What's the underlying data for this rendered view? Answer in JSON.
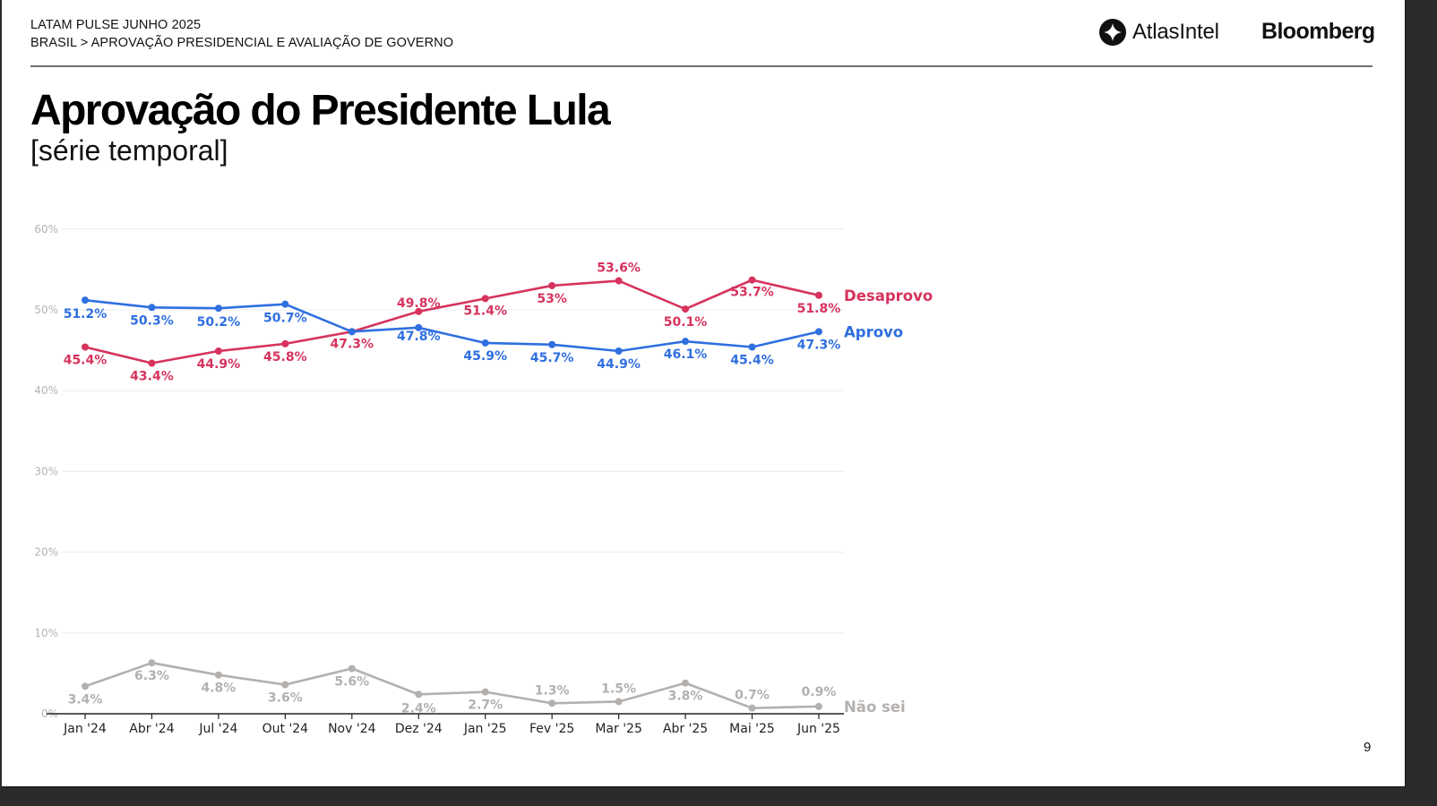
{
  "header": {
    "report": "LATAM PULSE JUNHO 2025",
    "breadcrumb": "BRASIL > APROVAÇÃO PRESIDENCIAL E AVALIAÇÃO DE GOVERNO"
  },
  "logos": {
    "atlas": "AtlasIntel",
    "bloomberg": "Bloomberg"
  },
  "title": "Aprovação do Presidente Lula",
  "subtitle": "[série temporal]",
  "page_number": "9",
  "colors": {
    "desaprovo": "#d6335d",
    "aprovo": "#2f6fe0",
    "nao_sei": "#b3b0ae",
    "grid": "#ececec",
    "axis": "#222222"
  },
  "chart_data": {
    "type": "line",
    "title": "Aprovação do Presidente Lula",
    "subtitle": "[série temporal]",
    "xlabel": "",
    "ylabel": "",
    "ylim": [
      0,
      60
    ],
    "yticks": [
      0,
      10,
      20,
      30,
      40,
      50,
      60
    ],
    "ytick_labels": [
      "0%",
      "10%",
      "20%",
      "30%",
      "40%",
      "50%",
      "60%"
    ],
    "grid": true,
    "legend": "inline-right",
    "categories": [
      "Jan '24",
      "Abr '24",
      "Jul '24",
      "Out '24",
      "Nov '24",
      "Dez '24",
      "Jan '25",
      "Fev '25",
      "Mar '25",
      "Abr '25",
      "Mai '25",
      "Jun '25"
    ],
    "series": [
      {
        "key": "desaprovo",
        "name": "Desaprovo",
        "values": [
          45.4,
          43.4,
          44.9,
          45.8,
          47.3,
          49.8,
          51.4,
          53.0,
          53.6,
          50.1,
          53.7,
          51.8
        ],
        "labels": [
          "45.4%",
          "43.4%",
          "44.9%",
          "45.8%",
          "47.3%",
          "49.8%",
          "51.4%",
          "53%",
          "53.6%",
          "50.1%",
          "53.7%",
          "51.8%"
        ]
      },
      {
        "key": "aprovo",
        "name": "Aprovo",
        "values": [
          51.2,
          50.3,
          50.2,
          50.7,
          47.3,
          47.8,
          45.9,
          45.7,
          44.9,
          46.1,
          45.4,
          47.3
        ],
        "labels": [
          "51.2%",
          "50.3%",
          "50.2%",
          "50.7%",
          "",
          "47.8%",
          "45.9%",
          "45.7%",
          "44.9%",
          "46.1%",
          "45.4%",
          "47.3%"
        ]
      },
      {
        "key": "nao_sei",
        "name": "Não sei",
        "values": [
          3.4,
          6.3,
          4.8,
          3.6,
          5.6,
          2.4,
          2.7,
          1.3,
          1.5,
          3.8,
          0.7,
          0.9
        ],
        "labels": [
          "3.4%",
          "6.3%",
          "4.8%",
          "3.6%",
          "5.6%",
          "2.4%",
          "2.7%",
          "1.3%",
          "1.5%",
          "3.8%",
          "0.7%",
          "0.9%"
        ]
      }
    ]
  }
}
